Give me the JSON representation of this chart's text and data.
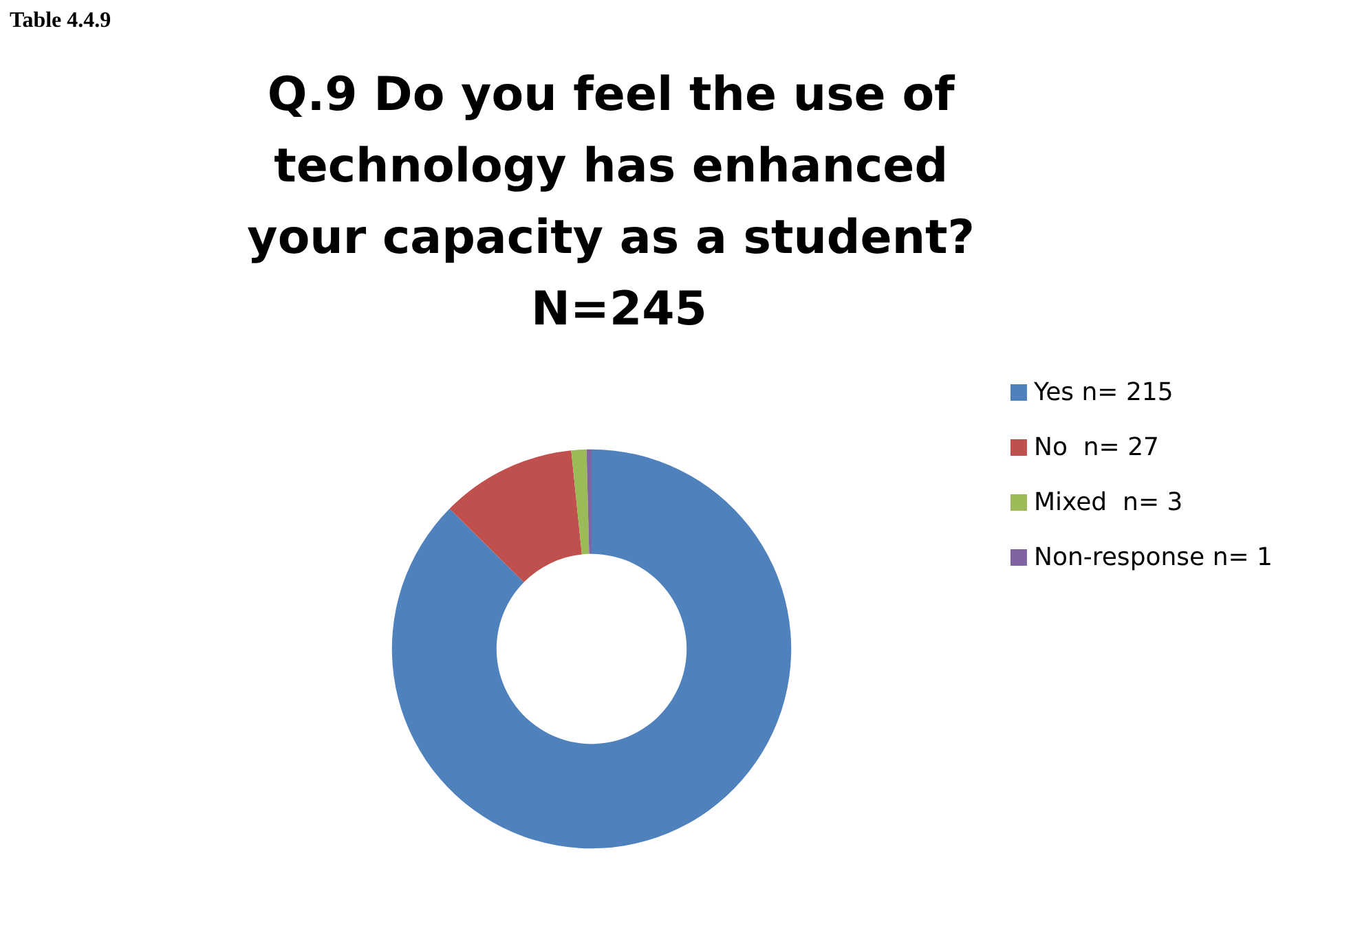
{
  "chart_data": {
    "type": "donut",
    "title": "Q.9 Do you feel the use of technology has enhanced your capacity as a student? N=245",
    "annotations": [
      "Table 4.4.9"
    ],
    "categories": [
      "Yes n= 215",
      "No  n= 27",
      "Mixed  n= 3",
      "Non-response n= 1"
    ],
    "values": [
      215,
      27,
      3,
      1
    ],
    "colors": [
      "#4f81bd",
      "#c0504d",
      "#9bbb59",
      "#8064a2"
    ],
    "legend": "right"
  }
}
